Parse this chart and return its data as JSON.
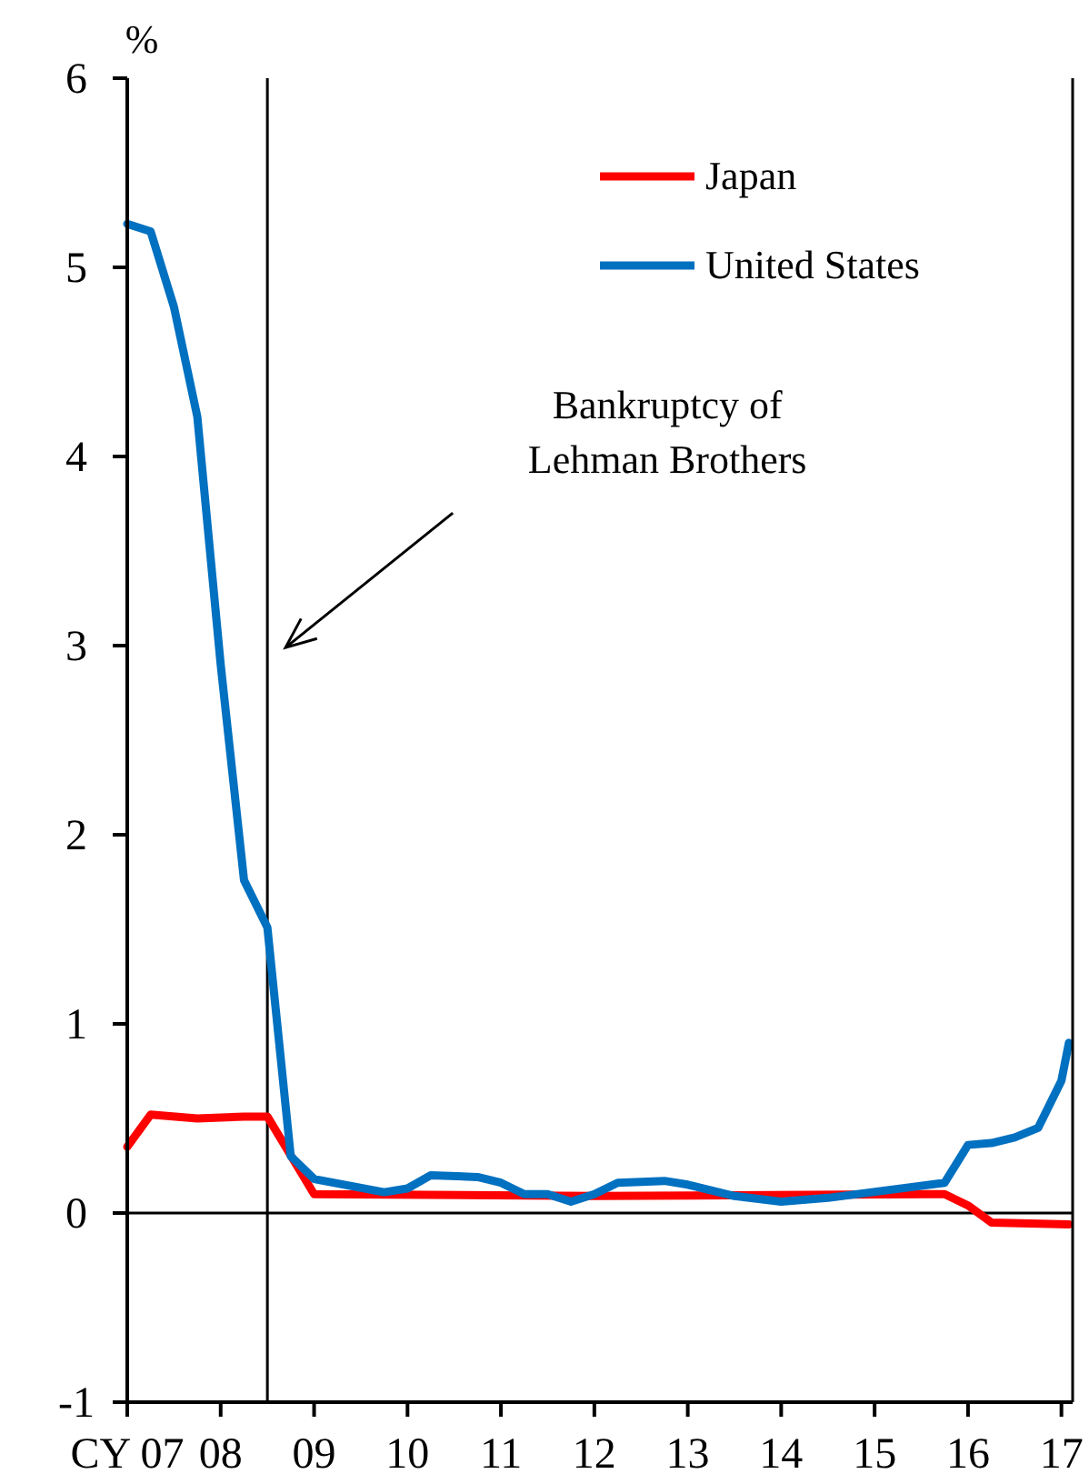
{
  "chart_data": {
    "type": "line",
    "ylabel": "%",
    "xlim": [
      2007,
      2017.12
    ],
    "ylim": [
      -1,
      6
    ],
    "xticks": [
      {
        "value": 2007,
        "label": "CY 07"
      },
      {
        "value": 2008,
        "label": "08"
      },
      {
        "value": 2009,
        "label": "09"
      },
      {
        "value": 2010,
        "label": "10"
      },
      {
        "value": 2011,
        "label": "11"
      },
      {
        "value": 2012,
        "label": "12"
      },
      {
        "value": 2013,
        "label": "13"
      },
      {
        "value": 2014,
        "label": "14"
      },
      {
        "value": 2015,
        "label": "15"
      },
      {
        "value": 2016,
        "label": "16"
      },
      {
        "value": 2017,
        "label": "17"
      }
    ],
    "yticks": [
      -1,
      0,
      1,
      2,
      3,
      4,
      5,
      6
    ],
    "series": [
      {
        "name": "Japan",
        "color": "#ff0000",
        "x": [
          2007,
          2007.25,
          2007.75,
          2008.25,
          2008.5,
          2009,
          2012,
          2015.75,
          2016,
          2016.25,
          2017.08
        ],
        "values": [
          0.35,
          0.52,
          0.5,
          0.51,
          0.51,
          0.1,
          0.09,
          0.1,
          0.04,
          -0.05,
          -0.06
        ]
      },
      {
        "name": "United States",
        "color": "#0070c0",
        "x": [
          2007,
          2007.25,
          2007.5,
          2007.75,
          2008,
          2008.25,
          2008.5,
          2008.75,
          2009,
          2009.75,
          2010,
          2010.25,
          2010.75,
          2011,
          2011.25,
          2011.5,
          2011.75,
          2012,
          2012.25,
          2012.75,
          2013,
          2013.5,
          2014,
          2014.5,
          2015.75,
          2016,
          2016.25,
          2016.5,
          2016.75,
          2017,
          2017.08
        ],
        "values": [
          5.23,
          5.19,
          4.79,
          4.21,
          2.9,
          1.76,
          1.51,
          0.3,
          0.18,
          0.11,
          0.13,
          0.2,
          0.19,
          0.16,
          0.1,
          0.1,
          0.06,
          0.1,
          0.16,
          0.17,
          0.15,
          0.09,
          0.06,
          0.08,
          0.16,
          0.36,
          0.37,
          0.4,
          0.45,
          0.7,
          0.9
        ]
      }
    ],
    "ref_lines": [
      {
        "axis": "x",
        "value": 2008.5,
        "color": "#000000"
      },
      {
        "axis": "y",
        "value": 0,
        "color": "#000000"
      }
    ],
    "annotations": [
      "Bankruptcy of\nLehman Brothers"
    ],
    "legend": "top right",
    "grid": false,
    "marker": "none",
    "line_style": "solid"
  }
}
